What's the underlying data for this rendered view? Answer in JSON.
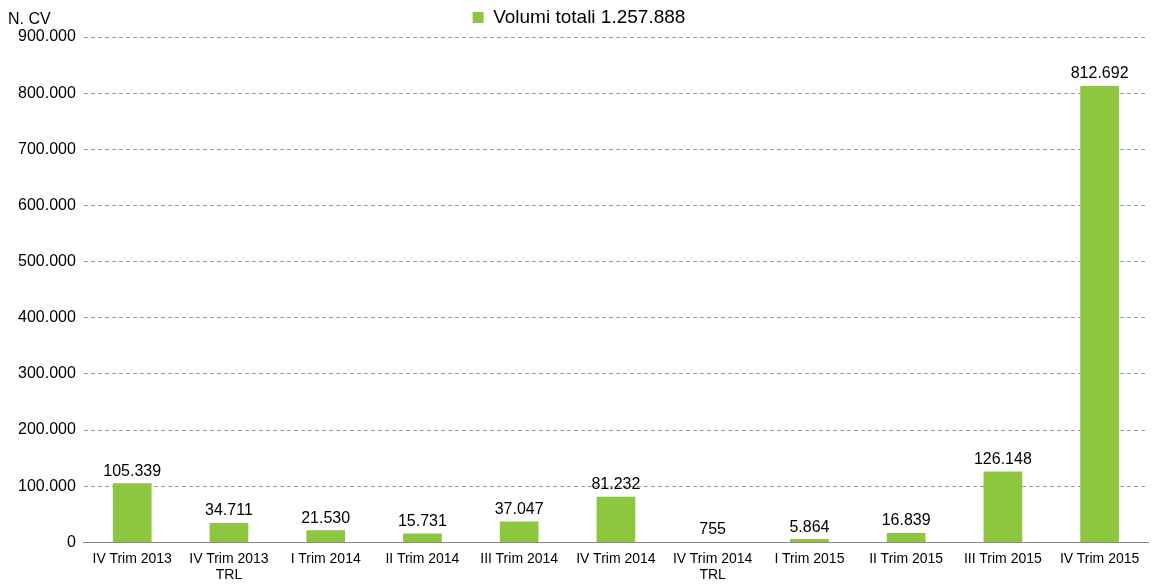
{
  "chart_data": {
    "type": "bar",
    "ylabel": "N. CV",
    "categories": [
      "IV Trim 2013",
      "IV Trim 2013\nTRL",
      "I Trim 2014",
      "II Trim 2014",
      "III Trim 2014",
      "IV Trim 2014",
      "IV Trim 2014\nTRL",
      "I Trim 2015",
      "II Trim 2015",
      "III Trim 2015",
      "IV Trim 2015"
    ],
    "series": [
      {
        "name": "Volumi totali 1.257.888",
        "color": "#8dc63f",
        "values": [
          105339,
          34711,
          21530,
          15731,
          37047,
          81232,
          755,
          5864,
          16839,
          126148,
          812692
        ],
        "value_labels": [
          "105.339",
          "34.711",
          "21.530",
          "15.731",
          "37.047",
          "81.232",
          "755",
          "5.864",
          "16.839",
          "126.148",
          "812.692"
        ]
      }
    ],
    "ylim": [
      0,
      900000
    ],
    "yticks": [
      {
        "value": 0,
        "label": "0"
      },
      {
        "value": 100000,
        "label": "100.000"
      },
      {
        "value": 200000,
        "label": "200.000"
      },
      {
        "value": 300000,
        "label": "300.000"
      },
      {
        "value": 400000,
        "label": "400.000"
      },
      {
        "value": 500000,
        "label": "500.000"
      },
      {
        "value": 600000,
        "label": "600.000"
      },
      {
        "value": 700000,
        "label": "700.000"
      },
      {
        "value": 800000,
        "label": "800.000"
      },
      {
        "value": 900000,
        "label": "900.000"
      }
    ],
    "grid": "y",
    "legend": "top"
  }
}
